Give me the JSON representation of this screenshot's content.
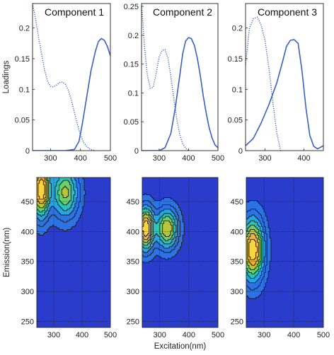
{
  "chart_data": {
    "type": "line",
    "line_panels": [
      {
        "title": "Component 1",
        "xlabel": "",
        "ylabel": "Loadings",
        "xlim": [
          240,
          500
        ],
        "ylim": [
          0,
          0.24
        ],
        "xticks": [
          "300",
          "400",
          "500"
        ],
        "yticks": [
          "0",
          "0.05",
          "0.1",
          "0.15",
          "0.2"
        ],
        "series": [
          {
            "style": "dotted",
            "x": [
              240,
              250,
              260,
              270,
              280,
              290,
              300,
              310,
              320,
              330,
              340,
              350,
              360,
              370,
              380,
              390,
              400,
              410,
              420,
              430,
              440,
              450
            ],
            "y": [
              0.24,
              0.215,
              0.185,
              0.158,
              0.132,
              0.113,
              0.105,
              0.104,
              0.107,
              0.111,
              0.112,
              0.108,
              0.098,
              0.082,
              0.062,
              0.042,
              0.026,
              0.014,
              0.007,
              0.003,
              0.001,
              0
            ]
          },
          {
            "style": "solid",
            "x": [
              240,
              300,
              350,
              380,
              395,
              405,
              420,
              435,
              450,
              460,
              470,
              480,
              490,
              500
            ],
            "y": [
              0,
              0,
              0,
              0.002,
              0.015,
              0.04,
              0.085,
              0.13,
              0.162,
              0.178,
              0.183,
              0.18,
              0.17,
              0.155
            ]
          }
        ]
      },
      {
        "title": "Component 2",
        "xlabel": "",
        "ylabel": "",
        "xlim": [
          240,
          500
        ],
        "ylim": [
          0,
          0.255
        ],
        "xticks": [
          "300",
          "400",
          "500"
        ],
        "yticks": [
          "0",
          "0.05",
          "0.1",
          "0.15",
          "0.2",
          "0.25"
        ],
        "series": [
          {
            "style": "dotted",
            "x": [
              240,
              250,
              260,
              270,
              280,
              290,
              300,
              310,
              320,
              330,
              340,
              350,
              360,
              370,
              380,
              390,
              400
            ],
            "y": [
              0.255,
              0.18,
              0.13,
              0.108,
              0.11,
              0.135,
              0.162,
              0.174,
              0.175,
              0.16,
              0.128,
              0.09,
              0.055,
              0.028,
              0.012,
              0.004,
              0
            ]
          },
          {
            "style": "solid",
            "x": [
              240,
              300,
              320,
              340,
              355,
              370,
              380,
              390,
              400,
              410,
              420,
              430,
              440,
              450,
              460,
              470,
              480,
              490,
              500
            ],
            "y": [
              0,
              0,
              0.005,
              0.03,
              0.075,
              0.13,
              0.168,
              0.19,
              0.196,
              0.194,
              0.182,
              0.16,
              0.13,
              0.095,
              0.065,
              0.04,
              0.022,
              0.01,
              0.005
            ]
          }
        ]
      },
      {
        "title": "Component 3",
        "xlabel": "",
        "ylabel": "",
        "xlim": [
          250,
          450
        ],
        "ylim": [
          0,
          0.24
        ],
        "xticks": [
          "300",
          "400"
        ],
        "yticks": [
          "0",
          "0.05",
          "0.1",
          "0.15",
          "0.2"
        ],
        "series": [
          {
            "style": "dotted",
            "x": [
              250,
              260,
              270,
              280,
              290,
              300,
              310,
              320,
              330,
              340
            ],
            "y": [
              0.14,
              0.2,
              0.215,
              0.218,
              0.205,
              0.18,
              0.135,
              0.08,
              0.03,
              0
            ]
          },
          {
            "style": "solid",
            "x": [
              250,
              270,
              290,
              310,
              330,
              345,
              355,
              365,
              375,
              385,
              395,
              405,
              415,
              425,
              435,
              450
            ],
            "y": [
              0.008,
              0.02,
              0.045,
              0.075,
              0.11,
              0.145,
              0.17,
              0.18,
              0.181,
              0.175,
              0.13,
              0.07,
              0.025,
              0.007,
              0.003,
              0.008
            ]
          }
        ]
      }
    ],
    "contour_panels": [
      {
        "type": "heatmap",
        "xlim": [
          240,
          500
        ],
        "ylim": [
          240,
          490
        ],
        "xticks": [
          "300",
          "400",
          "500"
        ],
        "yticks": [
          "250",
          "300",
          "350",
          "400",
          "450"
        ],
        "ylabel": "Emission(nm)",
        "xlabel": "",
        "peaks": [
          {
            "ex": 255,
            "em": 470,
            "sex": 28,
            "sem": 42,
            "amp": 1.0
          },
          {
            "ex": 340,
            "em": 465,
            "sex": 42,
            "sem": 38,
            "amp": 0.62
          }
        ]
      },
      {
        "type": "heatmap",
        "xlim": [
          240,
          500
        ],
        "ylim": [
          240,
          490
        ],
        "xticks": [
          "300",
          "400",
          "500"
        ],
        "yticks": [
          "250",
          "300",
          "350",
          "400",
          "450"
        ],
        "ylabel": "",
        "xlabel": "Excitation(nm)",
        "peaks": [
          {
            "ex": 252,
            "em": 405,
            "sex": 26,
            "sem": 32,
            "amp": 1.0
          },
          {
            "ex": 325,
            "em": 405,
            "sex": 34,
            "sem": 30,
            "amp": 0.72
          }
        ]
      },
      {
        "type": "heatmap",
        "xlim": [
          240,
          500
        ],
        "ylim": [
          240,
          490
        ],
        "xticks": [
          "300",
          "400",
          "500"
        ],
        "yticks": [
          "250",
          "300",
          "350",
          "400",
          "450"
        ],
        "ylabel": "",
        "xlabel": "",
        "peaks": [
          {
            "ex": 262,
            "em": 370,
            "sex": 34,
            "sem": 46,
            "amp": 1.0
          }
        ]
      }
    ],
    "grid": true,
    "line_color": "#3a5fc4",
    "contour_background": "#2a3ccc",
    "colormap": [
      "#2a3ccc",
      "#2c74e6",
      "#26a6e2",
      "#2cc4b6",
      "#6ccf6c",
      "#b8c43a",
      "#f0b43a",
      "#f7d63c"
    ]
  }
}
